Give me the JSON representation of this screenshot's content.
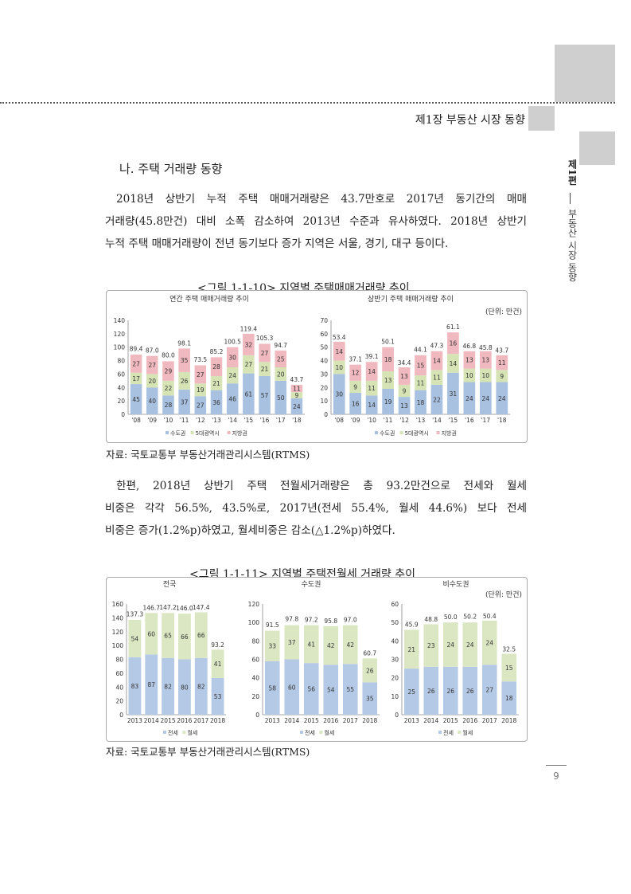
{
  "header": {
    "chapter": "제1장  부동산 시장 동향"
  },
  "side": {
    "part": "제1편",
    "title": "부동산 시장 동향"
  },
  "section": {
    "heading": "나. 주택 거래량 동향"
  },
  "para1": [
    "2018년 상반기 누적 주택 매매거래량은 43.7만호로 2017년 동기간의 매매",
    "거래량(45.8만건) 대비 소폭 감소하여 2013년 수준과 유사하였다. 2018년 상반기",
    "누적 주택 매매거래량이 전년 동기보다 증가 지역은 서울, 경기, 대구 등이다."
  ],
  "para2": [
    "한편, 2018년 상반기 주택 전월세거래량은 총 93.2만건으로 전세와 월세",
    "비중은 각각 56.5%, 43.5%로, 2017년(전세 55.4%, 월세 44.6%) 보다 전세",
    "비중은 증가(1.2%p)하였고, 월세비중은 감소(△1.2%p)하였다."
  ],
  "figure1": {
    "title": "<그림 1-1-10> 지역별 주택매매거래량 추이",
    "unit": "(단위: 만건)",
    "source": "자료: 국토교통부 부동산거래관리시스템(RTMS)"
  },
  "figure2": {
    "title": "<그림 1-1-11> 지역별 주택전월세 거래량 추이",
    "unit": "(단위: 만건)",
    "source": "자료: 국토교통부 부동산거래관리시스템(RTMS)"
  },
  "page_number": "9",
  "colors": {
    "capital": "#a9c1e0",
    "metro": "#d6e4b5",
    "local": "#f0b8bf",
    "jeonse": "#b4c9e6",
    "wolse": "#dbe7c2"
  },
  "chart_data": [
    {
      "type": "bar",
      "stacked": true,
      "title": "연간 주택 매매거래량 추이",
      "categories": [
        "'08",
        "'09",
        "'10",
        "'11",
        "'12",
        "'13",
        "'14",
        "'15",
        "'16",
        "'17",
        "'18"
      ],
      "ylim": [
        0,
        140
      ],
      "yticks": [
        0,
        20,
        40,
        60,
        80,
        100,
        120,
        140
      ],
      "series": [
        {
          "name": "수도권",
          "values": [
            45,
            40,
            28,
            37,
            27,
            36,
            46,
            61,
            57,
            50,
            24
          ]
        },
        {
          "name": "5대광역시",
          "values": [
            17,
            20,
            22,
            26,
            19,
            21,
            24,
            27,
            21,
            20,
            9
          ]
        },
        {
          "name": "지방권",
          "values": [
            27,
            27,
            29,
            35,
            27,
            28,
            30,
            32,
            27,
            25,
            11
          ]
        }
      ],
      "totals": [
        "89.4",
        "87.0",
        "80.0",
        "98.1",
        "73.5",
        "85.2",
        "100.5",
        "119.4",
        "105.3",
        "94.7",
        "43.7"
      ]
    },
    {
      "type": "bar",
      "stacked": true,
      "title": "상반기 주택 매매거래량 추이",
      "categories": [
        "'08",
        "'09",
        "'10",
        "'11",
        "'12",
        "'13",
        "'14",
        "'15",
        "'16",
        "'17",
        "'18"
      ],
      "ylim": [
        0,
        70
      ],
      "yticks": [
        0,
        10,
        20,
        30,
        40,
        50,
        60,
        70
      ],
      "series": [
        {
          "name": "수도권",
          "values": [
            30,
            16,
            14,
            19,
            13,
            18,
            22,
            31,
            24,
            24,
            24
          ]
        },
        {
          "name": "5대광역시",
          "values": [
            10,
            9,
            11,
            13,
            9,
            11,
            11,
            14,
            10,
            10,
            9
          ]
        },
        {
          "name": "지방권",
          "values": [
            14,
            12,
            14,
            18,
            13,
            15,
            14,
            16,
            13,
            13,
            11
          ]
        }
      ],
      "totals": [
        "53.4",
        "37.1",
        "39.1",
        "50.1",
        "34.4",
        "44.1",
        "47.3",
        "61.1",
        "46.8",
        "45.8",
        "43.7"
      ]
    },
    {
      "type": "bar",
      "stacked": true,
      "title": "전국",
      "categories": [
        "2013",
        "2014",
        "2015",
        "2016",
        "2017",
        "2018"
      ],
      "ylim": [
        0,
        160
      ],
      "yticks": [
        0,
        20,
        40,
        60,
        80,
        100,
        120,
        140,
        160
      ],
      "series": [
        {
          "name": "전세",
          "values": [
            83,
            87,
            82,
            80,
            82,
            53
          ]
        },
        {
          "name": "월세",
          "values": [
            54,
            60,
            65,
            66,
            66,
            41
          ]
        }
      ],
      "totals": [
        "137.3",
        "146.7",
        "147.2",
        "146.0",
        "147.4",
        "93.2"
      ]
    },
    {
      "type": "bar",
      "stacked": true,
      "title": "수도권",
      "categories": [
        "2013",
        "2014",
        "2015",
        "2016",
        "2017",
        "2018"
      ],
      "ylim": [
        0,
        120
      ],
      "yticks": [
        0,
        20,
        40,
        60,
        80,
        100,
        120
      ],
      "series": [
        {
          "name": "전세",
          "values": [
            58,
            60,
            56,
            54,
            55,
            35
          ]
        },
        {
          "name": "월세",
          "values": [
            33,
            37,
            41,
            42,
            42,
            26
          ]
        }
      ],
      "totals": [
        "91.5",
        "97.8",
        "97.2",
        "95.8",
        "97.0",
        "60.7"
      ]
    },
    {
      "type": "bar",
      "stacked": true,
      "title": "비수도권",
      "categories": [
        "2013",
        "2014",
        "2015",
        "2016",
        "2017",
        "2018"
      ],
      "ylim": [
        0,
        60
      ],
      "yticks": [
        0,
        10,
        20,
        30,
        40,
        50,
        60
      ],
      "series": [
        {
          "name": "전세",
          "values": [
            25,
            26,
            26,
            26,
            27,
            18
          ]
        },
        {
          "name": "월세",
          "values": [
            21,
            23,
            24,
            24,
            24,
            15
          ]
        }
      ],
      "totals": [
        "45.9",
        "48.8",
        "50.0",
        "50.2",
        "50.4",
        "32.5"
      ]
    }
  ]
}
